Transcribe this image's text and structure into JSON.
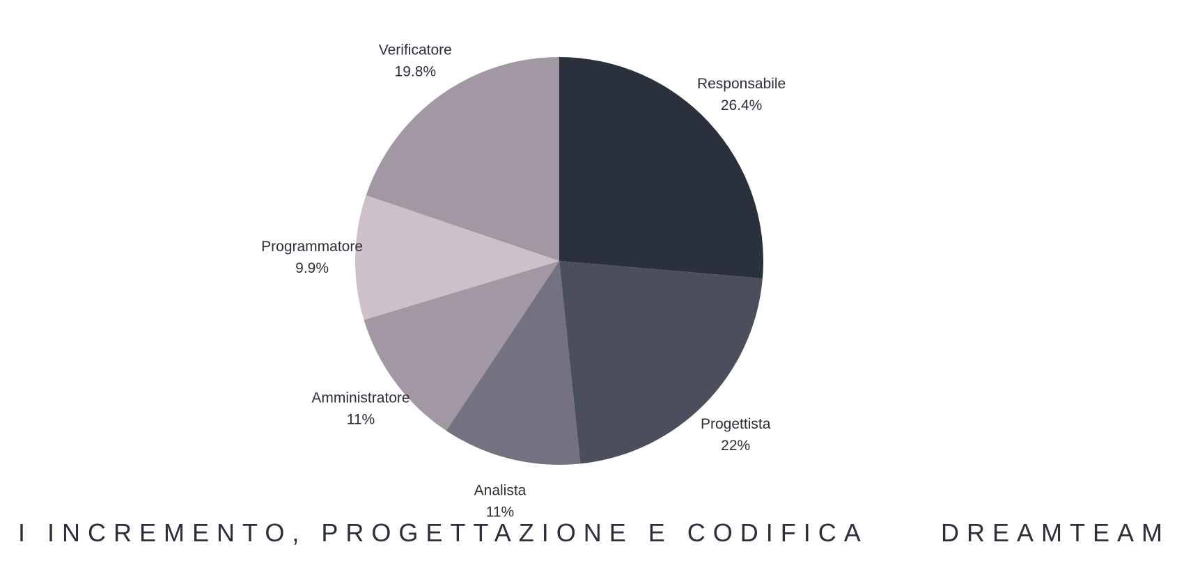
{
  "chart_data": {
    "type": "pie",
    "slices": [
      {
        "label": "Responsabile",
        "value": 26.4,
        "value_label": "26.4%",
        "color": "#2a313c"
      },
      {
        "label": "Progettista",
        "value": 22,
        "value_label": "22%",
        "color": "#4b4f5d"
      },
      {
        "label": "Analista",
        "value": 11,
        "value_label": "11%",
        "color": "#747280"
      },
      {
        "label": "Amministratore",
        "value": 11,
        "value_label": "11%",
        "color": "#a198a4"
      },
      {
        "label": "Programmatore",
        "value": 9.9,
        "value_label": "9.9%",
        "color": "#cdc0c9"
      },
      {
        "label": "Verificatore",
        "value": 19.8,
        "value_label": "19.8%",
        "color": "#a198a4"
      }
    ],
    "start_position": "top",
    "direction": "clockwise",
    "legend": "none",
    "labels": "outside"
  },
  "footer": {
    "left_text": "I INCREMENTO, PROGETTAZIONE E CODIFICA",
    "right_text": "DREAMTEAM"
  }
}
